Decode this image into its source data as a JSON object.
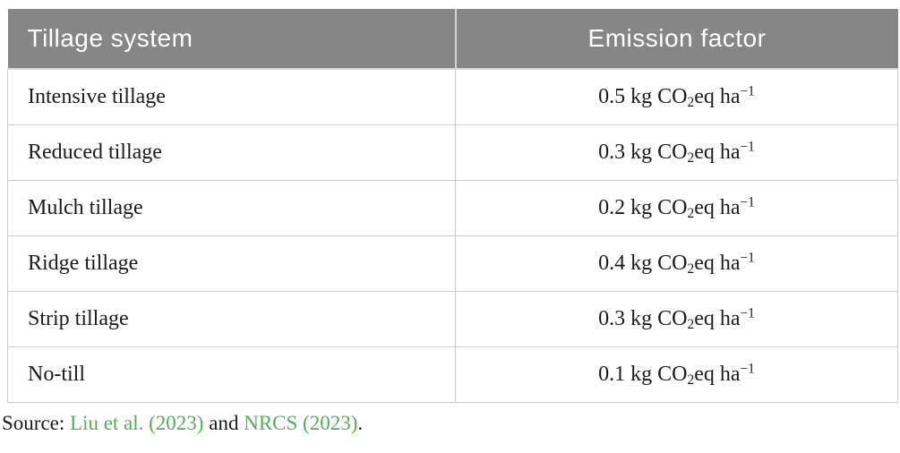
{
  "colors": {
    "header_bg": "#868686",
    "header_text": "#ffffff",
    "body_text": "#1b1b1b",
    "cell_border": "#cbcbcb",
    "link_green": "#5aab5a",
    "page_bg": "#ffffff"
  },
  "table": {
    "columns": [
      {
        "label": "Tillage system"
      },
      {
        "label": "Emission factor"
      }
    ],
    "rows": [
      {
        "system": "Intensive tillage",
        "value": 0.5,
        "emission": {
          "prefix": "0.5 kg CO",
          "sub": "2",
          "mid": "eq ha",
          "sup": "−1"
        }
      },
      {
        "system": "Reduced tillage",
        "value": 0.3,
        "emission": {
          "prefix": "0.3 kg CO",
          "sub": "2",
          "mid": "eq ha",
          "sup": "−1"
        }
      },
      {
        "system": "Mulch tillage",
        "value": 0.2,
        "emission": {
          "prefix": "0.2 kg CO",
          "sub": "2",
          "mid": "eq ha",
          "sup": "−1"
        }
      },
      {
        "system": "Ridge tillage",
        "value": 0.4,
        "emission": {
          "prefix": "0.4 kg CO",
          "sub": "2",
          "mid": "eq ha",
          "sup": "−1"
        }
      },
      {
        "system": "Strip tillage",
        "value": 0.3,
        "emission": {
          "prefix": "0.3 kg CO",
          "sub": "2",
          "mid": "eq ha",
          "sup": "−1"
        }
      },
      {
        "system": "No-till",
        "value": 0.1,
        "emission": {
          "prefix": "0.1 kg CO",
          "sub": "2",
          "mid": "eq ha",
          "sup": "−1"
        }
      }
    ]
  },
  "source": {
    "prefix": "Source: ",
    "link1": "Liu et al. (2023)",
    "middle": " and ",
    "link2": "NRCS (2023)",
    "suffix": "."
  }
}
